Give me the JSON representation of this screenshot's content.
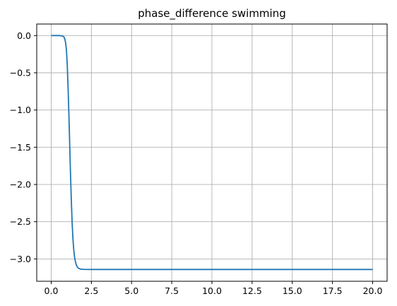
{
  "chart_data": {
    "type": "line",
    "title": "phase_difference swimming",
    "xlabel": "",
    "ylabel": "",
    "xlim": [
      -0.9,
      20.9
    ],
    "ylim": [
      -3.3,
      0.155
    ],
    "grid": true,
    "xticks": [
      0.0,
      2.5,
      5.0,
      7.5,
      10.0,
      12.5,
      15.0,
      17.5,
      20.0
    ],
    "xtick_labels": [
      "0.0",
      "2.5",
      "5.0",
      "7.5",
      "10.0",
      "12.5",
      "15.0",
      "17.5",
      "20.0"
    ],
    "yticks": [
      0.0,
      -0.5,
      -1.0,
      -1.5,
      -2.0,
      -2.5,
      -3.0
    ],
    "ytick_labels": [
      "0.0",
      "−0.5",
      "−1.0",
      "−1.5",
      "−2.0",
      "−2.5",
      "−3.0"
    ],
    "series": [
      {
        "color": "#1f77b4",
        "x": [
          0.0,
          0.5,
          0.7,
          0.8,
          0.85,
          0.9,
          0.95,
          1.0,
          1.05,
          1.1,
          1.15,
          1.2,
          1.25,
          1.3,
          1.35,
          1.4,
          1.45,
          1.5,
          1.55,
          1.6,
          1.65,
          1.7,
          1.8,
          1.9,
          2.0,
          2.2,
          2.5,
          3.0,
          5.0,
          10.0,
          15.0,
          20.0
        ],
        "y": [
          0.0,
          0.0,
          -0.005,
          -0.02,
          -0.05,
          -0.1,
          -0.2,
          -0.4,
          -0.7,
          -1.05,
          -1.45,
          -1.85,
          -2.2,
          -2.5,
          -2.72,
          -2.87,
          -2.97,
          -3.03,
          -3.07,
          -3.1,
          -3.115,
          -3.125,
          -3.135,
          -3.138,
          -3.14,
          -3.141,
          -3.1415,
          -3.1416,
          -3.1416,
          -3.1416,
          -3.1416,
          -3.1416
        ]
      }
    ]
  }
}
